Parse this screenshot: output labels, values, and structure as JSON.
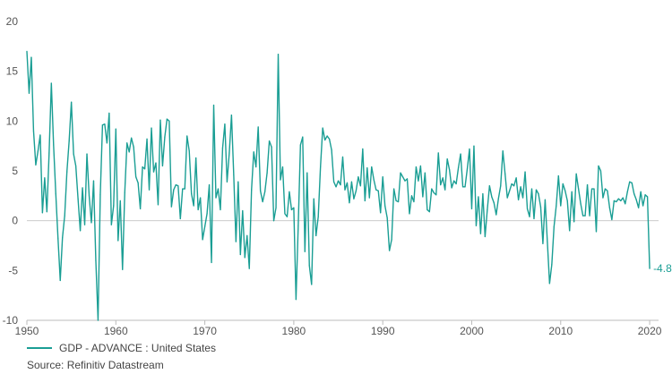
{
  "colors": {
    "series": "#1a9e94",
    "axis": "#bbbbbb",
    "zero_line": "#cccccc",
    "text": "#555555"
  },
  "legend": {
    "label": "GDP - ADVANCE : United States"
  },
  "source": "Source: Refinitiv Datastream",
  "chart_data": {
    "type": "line",
    "title": "",
    "xlabel": "",
    "ylabel": "",
    "xlim": [
      1950,
      2021
    ],
    "ylim": [
      -10,
      20
    ],
    "x_ticks": [
      1950,
      1960,
      1970,
      1980,
      1990,
      2000,
      2010,
      2020
    ],
    "y_ticks": [
      -10,
      -5,
      0,
      5,
      10,
      15,
      20
    ],
    "grid": false,
    "legend_position": "bottom-left",
    "end_label": "-4.8",
    "series": [
      {
        "name": "GDP - ADVANCE : United States",
        "points": [
          [
            1950.0,
            17.0
          ],
          [
            1950.25,
            12.8
          ],
          [
            1950.5,
            16.4
          ],
          [
            1950.75,
            9.0
          ],
          [
            1951.0,
            5.6
          ],
          [
            1951.25,
            7.0
          ],
          [
            1951.5,
            8.6
          ],
          [
            1951.75,
            0.8
          ],
          [
            1952.0,
            4.3
          ],
          [
            1952.25,
            0.9
          ],
          [
            1952.5,
            6.8
          ],
          [
            1952.75,
            13.8
          ],
          [
            1953.0,
            7.6
          ],
          [
            1953.25,
            2.7
          ],
          [
            1953.5,
            -1.8
          ],
          [
            1953.75,
            -6.0
          ],
          [
            1954.0,
            -1.7
          ],
          [
            1954.25,
            0.5
          ],
          [
            1954.5,
            4.9
          ],
          [
            1954.75,
            8.0
          ],
          [
            1955.0,
            11.9
          ],
          [
            1955.25,
            6.7
          ],
          [
            1955.5,
            5.5
          ],
          [
            1955.75,
            2.2
          ],
          [
            1956.0,
            -1.0
          ],
          [
            1956.25,
            3.3
          ],
          [
            1956.5,
            -0.4
          ],
          [
            1956.75,
            6.7
          ],
          [
            1957.0,
            2.5
          ],
          [
            1957.25,
            -0.2
          ],
          [
            1957.5,
            4.0
          ],
          [
            1957.75,
            -4.0
          ],
          [
            1958.0,
            -10.0
          ],
          [
            1958.25,
            2.6
          ],
          [
            1958.5,
            9.6
          ],
          [
            1958.75,
            9.7
          ],
          [
            1959.0,
            7.8
          ],
          [
            1959.25,
            10.8
          ],
          [
            1959.5,
            -0.4
          ],
          [
            1959.75,
            1.5
          ],
          [
            1960.0,
            9.2
          ],
          [
            1960.25,
            -2.0
          ],
          [
            1960.5,
            2.0
          ],
          [
            1960.75,
            -4.9
          ],
          [
            1961.0,
            2.8
          ],
          [
            1961.25,
            7.8
          ],
          [
            1961.5,
            6.9
          ],
          [
            1961.75,
            8.3
          ],
          [
            1962.0,
            7.4
          ],
          [
            1962.25,
            4.4
          ],
          [
            1962.5,
            3.8
          ],
          [
            1962.75,
            1.2
          ],
          [
            1963.0,
            5.4
          ],
          [
            1963.25,
            5.2
          ],
          [
            1963.5,
            8.2
          ],
          [
            1963.75,
            3.1
          ],
          [
            1964.0,
            9.3
          ],
          [
            1964.25,
            4.9
          ],
          [
            1964.5,
            5.8
          ],
          [
            1964.75,
            1.6
          ],
          [
            1965.0,
            10.1
          ],
          [
            1965.25,
            5.5
          ],
          [
            1965.5,
            8.4
          ],
          [
            1965.75,
            10.2
          ],
          [
            1966.0,
            10.0
          ],
          [
            1966.25,
            1.4
          ],
          [
            1966.5,
            3.1
          ],
          [
            1966.75,
            3.6
          ],
          [
            1967.0,
            3.5
          ],
          [
            1967.25,
            0.2
          ],
          [
            1967.5,
            3.2
          ],
          [
            1967.75,
            3.2
          ],
          [
            1968.0,
            8.5
          ],
          [
            1968.25,
            7.0
          ],
          [
            1968.5,
            2.7
          ],
          [
            1968.75,
            1.5
          ],
          [
            1969.0,
            6.3
          ],
          [
            1969.25,
            1.1
          ],
          [
            1969.5,
            2.3
          ],
          [
            1969.75,
            -1.9
          ],
          [
            1970.0,
            -0.6
          ],
          [
            1970.25,
            0.7
          ],
          [
            1970.5,
            3.6
          ],
          [
            1970.75,
            -4.2
          ],
          [
            1971.0,
            11.6
          ],
          [
            1971.25,
            2.3
          ],
          [
            1971.5,
            3.2
          ],
          [
            1971.75,
            1.1
          ],
          [
            1972.0,
            7.3
          ],
          [
            1972.25,
            9.7
          ],
          [
            1972.5,
            3.9
          ],
          [
            1972.75,
            6.8
          ],
          [
            1973.0,
            10.6
          ],
          [
            1973.25,
            4.6
          ],
          [
            1973.5,
            -2.1
          ],
          [
            1973.75,
            3.9
          ],
          [
            1974.0,
            -3.4
          ],
          [
            1974.25,
            1.0
          ],
          [
            1974.5,
            -3.7
          ],
          [
            1974.75,
            -1.5
          ],
          [
            1975.0,
            -4.8
          ],
          [
            1975.25,
            3.1
          ],
          [
            1975.5,
            6.9
          ],
          [
            1975.75,
            5.4
          ],
          [
            1976.0,
            9.4
          ],
          [
            1976.25,
            3.0
          ],
          [
            1976.5,
            1.9
          ],
          [
            1976.75,
            2.9
          ],
          [
            1977.0,
            4.8
          ],
          [
            1977.25,
            8.0
          ],
          [
            1977.5,
            7.4
          ],
          [
            1977.75,
            0.0
          ],
          [
            1978.0,
            1.3
          ],
          [
            1978.25,
            16.7
          ],
          [
            1978.5,
            4.1
          ],
          [
            1978.75,
            5.4
          ],
          [
            1979.0,
            0.7
          ],
          [
            1979.25,
            0.4
          ],
          [
            1979.5,
            2.9
          ],
          [
            1979.75,
            1.1
          ],
          [
            1980.0,
            1.3
          ],
          [
            1980.25,
            -7.9
          ],
          [
            1980.5,
            -0.5
          ],
          [
            1980.75,
            7.6
          ],
          [
            1981.0,
            8.4
          ],
          [
            1981.25,
            -3.1
          ],
          [
            1981.5,
            4.8
          ],
          [
            1981.75,
            -4.5
          ],
          [
            1982.0,
            -6.4
          ],
          [
            1982.25,
            2.2
          ],
          [
            1982.5,
            -1.5
          ],
          [
            1982.75,
            0.4
          ],
          [
            1983.0,
            5.4
          ],
          [
            1983.25,
            9.3
          ],
          [
            1983.5,
            8.1
          ],
          [
            1983.75,
            8.5
          ],
          [
            1984.0,
            8.2
          ],
          [
            1984.25,
            7.1
          ],
          [
            1984.5,
            3.9
          ],
          [
            1984.75,
            3.4
          ],
          [
            1985.0,
            4.0
          ],
          [
            1985.25,
            3.6
          ],
          [
            1985.5,
            6.4
          ],
          [
            1985.75,
            3.1
          ],
          [
            1986.0,
            3.8
          ],
          [
            1986.25,
            1.8
          ],
          [
            1986.5,
            3.9
          ],
          [
            1986.75,
            2.2
          ],
          [
            1987.0,
            3.0
          ],
          [
            1987.25,
            4.4
          ],
          [
            1987.5,
            3.5
          ],
          [
            1987.75,
            7.2
          ],
          [
            1988.0,
            2.0
          ],
          [
            1988.25,
            5.3
          ],
          [
            1988.5,
            2.3
          ],
          [
            1988.75,
            5.4
          ],
          [
            1989.0,
            4.1
          ],
          [
            1989.25,
            3.1
          ],
          [
            1989.5,
            3.0
          ],
          [
            1989.75,
            0.8
          ],
          [
            1990.0,
            4.4
          ],
          [
            1990.25,
            1.5
          ],
          [
            1990.5,
            0.3
          ],
          [
            1990.75,
            -3.0
          ],
          [
            1991.0,
            -1.9
          ],
          [
            1991.25,
            3.2
          ],
          [
            1991.5,
            2.0
          ],
          [
            1991.75,
            1.9
          ],
          [
            1992.0,
            4.8
          ],
          [
            1992.25,
            4.4
          ],
          [
            1992.5,
            4.0
          ],
          [
            1992.75,
            4.2
          ],
          [
            1993.0,
            0.7
          ],
          [
            1993.25,
            2.5
          ],
          [
            1993.5,
            1.9
          ],
          [
            1993.75,
            5.4
          ],
          [
            1994.0,
            4.0
          ],
          [
            1994.25,
            5.5
          ],
          [
            1994.5,
            2.4
          ],
          [
            1994.75,
            4.8
          ],
          [
            1995.0,
            1.1
          ],
          [
            1995.25,
            0.9
          ],
          [
            1995.5,
            3.2
          ],
          [
            1995.75,
            2.8
          ],
          [
            1996.0,
            2.6
          ],
          [
            1996.25,
            6.8
          ],
          [
            1996.5,
            3.6
          ],
          [
            1996.75,
            4.3
          ],
          [
            1997.0,
            3.1
          ],
          [
            1997.25,
            6.2
          ],
          [
            1997.5,
            5.1
          ],
          [
            1997.75,
            3.3
          ],
          [
            1998.0,
            4.0
          ],
          [
            1998.25,
            3.7
          ],
          [
            1998.5,
            5.3
          ],
          [
            1998.75,
            6.7
          ],
          [
            1999.0,
            3.4
          ],
          [
            1999.25,
            3.4
          ],
          [
            1999.5,
            5.2
          ],
          [
            1999.75,
            7.2
          ],
          [
            2000.0,
            1.2
          ],
          [
            2000.25,
            7.5
          ],
          [
            2000.5,
            -0.5
          ],
          [
            2000.75,
            2.4
          ],
          [
            2001.0,
            -1.3
          ],
          [
            2001.25,
            2.7
          ],
          [
            2001.5,
            -1.6
          ],
          [
            2001.75,
            1.1
          ],
          [
            2002.0,
            3.5
          ],
          [
            2002.25,
            2.4
          ],
          [
            2002.5,
            1.8
          ],
          [
            2002.75,
            0.6
          ],
          [
            2003.0,
            2.2
          ],
          [
            2003.25,
            3.5
          ],
          [
            2003.5,
            7.0
          ],
          [
            2003.75,
            4.7
          ],
          [
            2004.0,
            2.3
          ],
          [
            2004.25,
            3.0
          ],
          [
            2004.5,
            3.7
          ],
          [
            2004.75,
            3.5
          ],
          [
            2005.0,
            4.3
          ],
          [
            2005.25,
            2.1
          ],
          [
            2005.5,
            3.4
          ],
          [
            2005.75,
            2.3
          ],
          [
            2006.0,
            4.9
          ],
          [
            2006.25,
            1.2
          ],
          [
            2006.5,
            0.4
          ],
          [
            2006.75,
            3.2
          ],
          [
            2007.0,
            0.2
          ],
          [
            2007.25,
            3.1
          ],
          [
            2007.5,
            2.7
          ],
          [
            2007.75,
            1.4
          ],
          [
            2008.0,
            -2.3
          ],
          [
            2008.25,
            2.1
          ],
          [
            2008.5,
            -2.1
          ],
          [
            2008.75,
            -6.3
          ],
          [
            2009.0,
            -4.4
          ],
          [
            2009.25,
            -0.6
          ],
          [
            2009.5,
            1.5
          ],
          [
            2009.75,
            4.5
          ],
          [
            2010.0,
            1.5
          ],
          [
            2010.25,
            3.7
          ],
          [
            2010.5,
            3.0
          ],
          [
            2010.75,
            2.0
          ],
          [
            2011.0,
            -1.0
          ],
          [
            2011.25,
            2.9
          ],
          [
            2011.5,
            -0.1
          ],
          [
            2011.75,
            4.7
          ],
          [
            2012.0,
            3.2
          ],
          [
            2012.25,
            1.7
          ],
          [
            2012.5,
            0.5
          ],
          [
            2012.75,
            0.5
          ],
          [
            2013.0,
            3.6
          ],
          [
            2013.25,
            0.5
          ],
          [
            2013.5,
            3.2
          ],
          [
            2013.75,
            3.2
          ],
          [
            2014.0,
            -1.1
          ],
          [
            2014.25,
            5.5
          ],
          [
            2014.5,
            5.0
          ],
          [
            2014.75,
            2.3
          ],
          [
            2015.0,
            3.2
          ],
          [
            2015.25,
            3.0
          ],
          [
            2015.5,
            1.3
          ],
          [
            2015.75,
            0.1
          ],
          [
            2016.0,
            2.0
          ],
          [
            2016.25,
            1.9
          ],
          [
            2016.5,
            2.2
          ],
          [
            2016.75,
            2.0
          ],
          [
            2017.0,
            2.3
          ],
          [
            2017.25,
            1.7
          ],
          [
            2017.5,
            2.9
          ],
          [
            2017.75,
            3.9
          ],
          [
            2018.0,
            3.8
          ],
          [
            2018.25,
            2.7
          ],
          [
            2018.5,
            2.1
          ],
          [
            2018.75,
            1.3
          ],
          [
            2019.0,
            2.9
          ],
          [
            2019.25,
            1.5
          ],
          [
            2019.5,
            2.6
          ],
          [
            2019.75,
            2.4
          ],
          [
            2020.0,
            -4.8
          ]
        ]
      }
    ]
  }
}
